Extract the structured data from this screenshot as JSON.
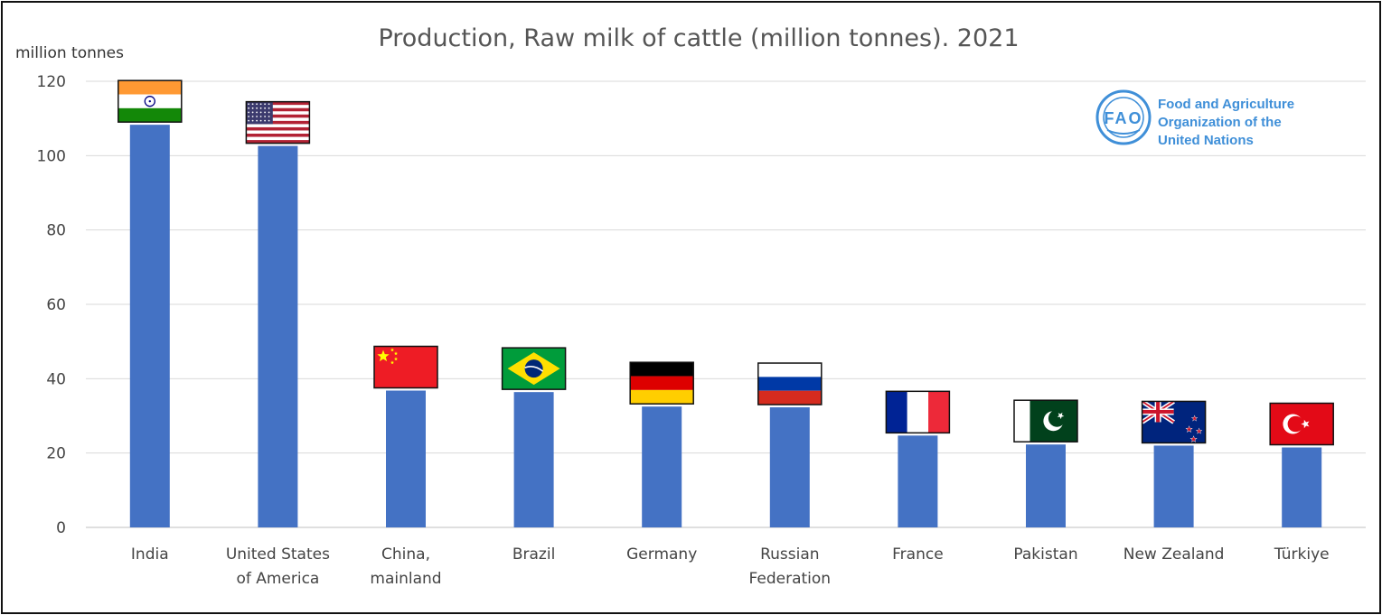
{
  "chart_data": {
    "type": "bar",
    "title": "Production, Raw milk of cattle (million tonnes). 2021",
    "ylabel": "million tonnes",
    "xlabel": "",
    "ylim": [
      0,
      120
    ],
    "yticks": [
      0,
      20,
      40,
      60,
      80,
      100,
      120
    ],
    "grid": true,
    "categories": [
      [
        "India"
      ],
      [
        "United States",
        "of America"
      ],
      [
        "China,",
        "mainland"
      ],
      [
        "Brazil"
      ],
      [
        "Germany"
      ],
      [
        "Russian",
        "Federation"
      ],
      [
        "France"
      ],
      [
        "Pakistan"
      ],
      [
        "New Zealand"
      ],
      [
        "Türkiye"
      ]
    ],
    "values": [
      108.3,
      102.6,
      36.8,
      36.4,
      32.5,
      32.3,
      24.7,
      22.3,
      22.0,
      21.5
    ],
    "flags": [
      "india",
      "usa",
      "china",
      "brazil",
      "germany",
      "russia",
      "france",
      "pakistan",
      "new-zealand",
      "turkiye"
    ],
    "bar_color": "#4472c4"
  },
  "logo": {
    "org_lines": [
      "Food and Agriculture",
      "Organization of the",
      "United Nations"
    ],
    "emblem_letters": "FAO",
    "color": "#3f8fd8"
  }
}
